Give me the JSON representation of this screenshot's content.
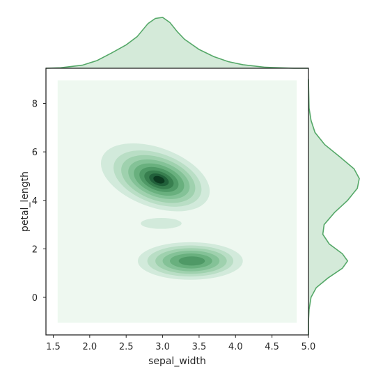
{
  "chart_data": {
    "type": "kde-joint",
    "title": "",
    "xlabel": "sepal_width",
    "ylabel": "petal_length",
    "xlim": [
      1.4,
      5.0
    ],
    "ylim": [
      -1.55,
      9.45
    ],
    "xticks": [
      1.5,
      2.0,
      2.5,
      3.0,
      3.5,
      4.0,
      4.5,
      5.0
    ],
    "xtick_labels": [
      "1.5",
      "2.0",
      "2.5",
      "3.0",
      "3.5",
      "4.0",
      "4.5",
      "5.0"
    ],
    "yticks": [
      0,
      2,
      4,
      6,
      8
    ],
    "ytick_labels": [
      "0",
      "2",
      "4",
      "6",
      "8"
    ],
    "fill_extent": {
      "x": [
        1.56,
        4.84
      ],
      "y": [
        -1.05,
        8.95
      ]
    },
    "grid": false,
    "legend": "none",
    "density_peaks": [
      {
        "x": 2.95,
        "y": 4.85,
        "relative_density": 1.0
      },
      {
        "x": 3.4,
        "y": 1.5,
        "relative_density": 0.55
      }
    ],
    "contour_levels": 9,
    "colors": {
      "background_fill": "#eef8f0",
      "levels": [
        "#d2eadb",
        "#b9dec5",
        "#9fd1ae",
        "#84c297",
        "#69b07e",
        "#4f9966",
        "#387f4f",
        "#21603a",
        "#0c3a20"
      ],
      "marginal_line": "#55a868",
      "marginal_fill": "#d4ead9",
      "frame": "#262626"
    },
    "marginal_x": {
      "axis": "sepal_width",
      "points": [
        [
          1.4,
          0.0
        ],
        [
          1.6,
          0.01
        ],
        [
          1.9,
          0.06
        ],
        [
          2.1,
          0.15
        ],
        [
          2.3,
          0.3
        ],
        [
          2.5,
          0.46
        ],
        [
          2.65,
          0.62
        ],
        [
          2.8,
          0.88
        ],
        [
          2.9,
          0.98
        ],
        [
          3.0,
          1.0
        ],
        [
          3.1,
          0.9
        ],
        [
          3.2,
          0.72
        ],
        [
          3.3,
          0.57
        ],
        [
          3.5,
          0.37
        ],
        [
          3.7,
          0.23
        ],
        [
          3.9,
          0.13
        ],
        [
          4.1,
          0.07
        ],
        [
          4.4,
          0.02
        ],
        [
          4.8,
          0.0
        ],
        [
          5.0,
          0.0
        ]
      ]
    },
    "marginal_y": {
      "axis": "petal_length",
      "points": [
        [
          -1.55,
          0.0
        ],
        [
          -1.0,
          0.0
        ],
        [
          -0.5,
          0.01
        ],
        [
          0.0,
          0.04
        ],
        [
          0.4,
          0.12
        ],
        [
          0.8,
          0.3
        ],
        [
          1.2,
          0.52
        ],
        [
          1.5,
          0.6
        ],
        [
          1.8,
          0.52
        ],
        [
          2.2,
          0.32
        ],
        [
          2.6,
          0.22
        ],
        [
          3.0,
          0.24
        ],
        [
          3.5,
          0.4
        ],
        [
          4.0,
          0.6
        ],
        [
          4.5,
          0.75
        ],
        [
          4.9,
          0.78
        ],
        [
          5.3,
          0.7
        ],
        [
          5.8,
          0.48
        ],
        [
          6.3,
          0.25
        ],
        [
          6.8,
          0.1
        ],
        [
          7.3,
          0.04
        ],
        [
          7.8,
          0.01
        ],
        [
          9.0,
          0.0
        ]
      ]
    }
  }
}
